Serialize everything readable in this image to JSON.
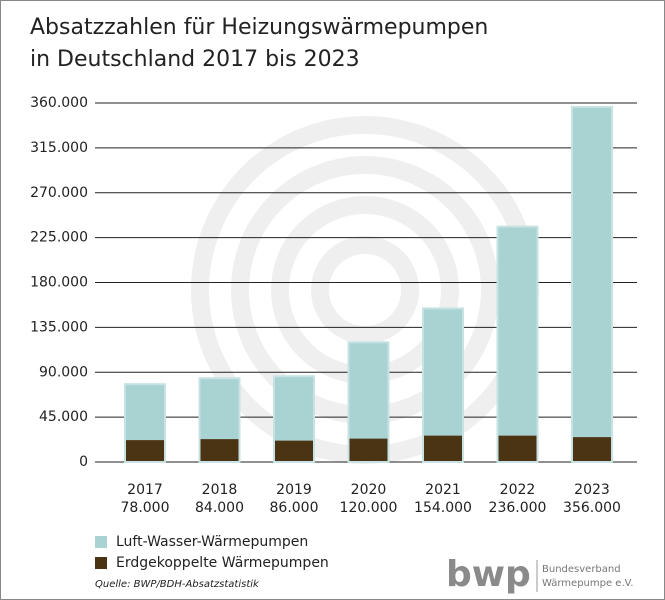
{
  "chart_data": {
    "type": "stacked-bar",
    "title_lines": [
      "Absatzzahlen für Heizungswärmepumpen",
      "in Deutschland 2017 bis 2023"
    ],
    "categories": [
      "2017",
      "2018",
      "2019",
      "2020",
      "2021",
      "2022",
      "2023"
    ],
    "totals": {
      "values": [
        78000,
        84000,
        86000,
        120000,
        154000,
        236000,
        356000
      ],
      "value_labels": [
        "78.000",
        "84.000",
        "86.000",
        "120.000",
        "154.000",
        "236.000",
        "356.000"
      ]
    },
    "series": [
      {
        "name": "Erdgekoppelte Wärmepumpen",
        "color": "#4a3414",
        "values": [
          22000,
          23000,
          21500,
          23500,
          26500,
          26500,
          25000
        ]
      },
      {
        "name": "Luft-Wasser-Wärmepumpen",
        "color": "#a9d2d2",
        "values": [
          56000,
          61000,
          64500,
          96500,
          127500,
          209500,
          331000
        ]
      }
    ],
    "ylim": [
      0,
      360000
    ],
    "yticks": [
      0,
      {
        "value": 45000,
        "label": "45.000"
      },
      {
        "value": 90000,
        "label": "90.000"
      },
      {
        "value": 135000,
        "label": "135.000"
      },
      {
        "value": 180000,
        "label": "180.000"
      },
      {
        "value": 225000,
        "label": "225.000"
      },
      {
        "value": 270000,
        "label": "270.000"
      },
      {
        "value": 315000,
        "label": "315.000"
      },
      {
        "value": 360000,
        "label": "360.000"
      }
    ],
    "grid": true,
    "source": "Quelle: BWP/BDH-Absatzstatistik",
    "logo": {
      "mark": "bwp",
      "lines": [
        "Bundesverband",
        "Wärmepumpe e.V."
      ]
    }
  }
}
